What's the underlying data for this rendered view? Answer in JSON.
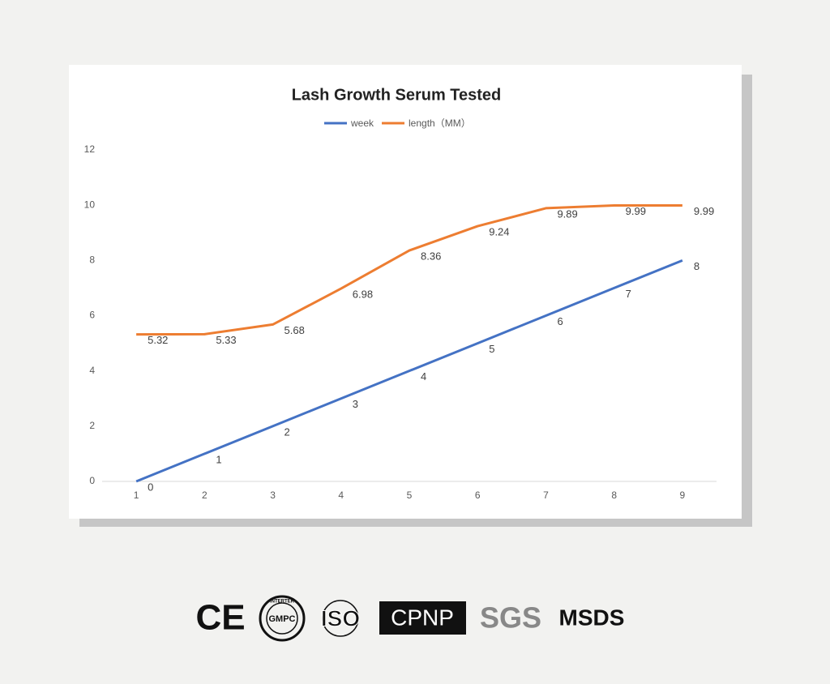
{
  "chart_data": {
    "type": "line",
    "title": "Lash Growth Serum Tested",
    "categories": [
      "1",
      "2",
      "3",
      "4",
      "5",
      "6",
      "7",
      "8",
      "9"
    ],
    "series": [
      {
        "name": "week",
        "color": "#4472c4",
        "values": [
          0,
          1,
          2,
          3,
          4,
          5,
          6,
          7,
          8
        ]
      },
      {
        "name": "length（MM）",
        "color": "#ed7d31",
        "values": [
          5.32,
          5.33,
          5.68,
          6.98,
          8.36,
          9.24,
          9.89,
          9.99,
          9.99
        ]
      }
    ],
    "ylim": [
      0,
      12
    ],
    "yticks": [
      0,
      2,
      4,
      6,
      8,
      10,
      12
    ],
    "grid": false,
    "legend": "top",
    "data_labels": true
  },
  "badges": [
    "CE",
    "INTERTEK",
    "GMPC",
    "ISO",
    "CPNP",
    "SGS",
    "MSDS"
  ]
}
